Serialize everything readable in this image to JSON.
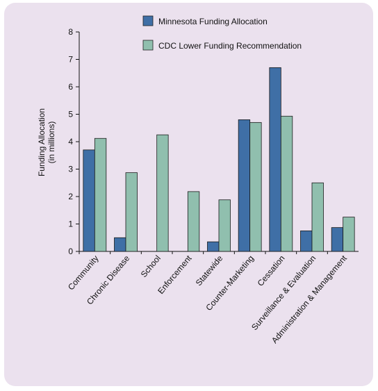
{
  "chart_data": {
    "type": "bar",
    "categories": [
      "Community",
      "Chronic Disease",
      "School",
      "Enforcement",
      "Statewide",
      "Counter-Marketing",
      "Cessation",
      "Surveillance & Evaluation",
      "Administration & Management"
    ],
    "series": [
      {
        "name": "Minnesota Funding Allocation",
        "values": [
          3.7,
          0.5,
          0,
          0,
          0.35,
          4.8,
          6.7,
          0.75,
          0.87
        ],
        "color": "#3f6fa6"
      },
      {
        "name": "CDC Lower Funding Recommendation",
        "values": [
          4.12,
          2.87,
          4.25,
          2.18,
          1.88,
          4.7,
          4.93,
          2.5,
          1.25
        ],
        "color": "#90bfae"
      }
    ],
    "ylabel_line1": "Funding Allocation",
    "ylabel_line2": "(in millions)",
    "yticks": [
      "0",
      "1",
      "2",
      "3",
      "4",
      "5",
      "6",
      "7",
      "8"
    ],
    "ylim": [
      0,
      8
    ],
    "grid": false,
    "legend_position": "top-right"
  }
}
